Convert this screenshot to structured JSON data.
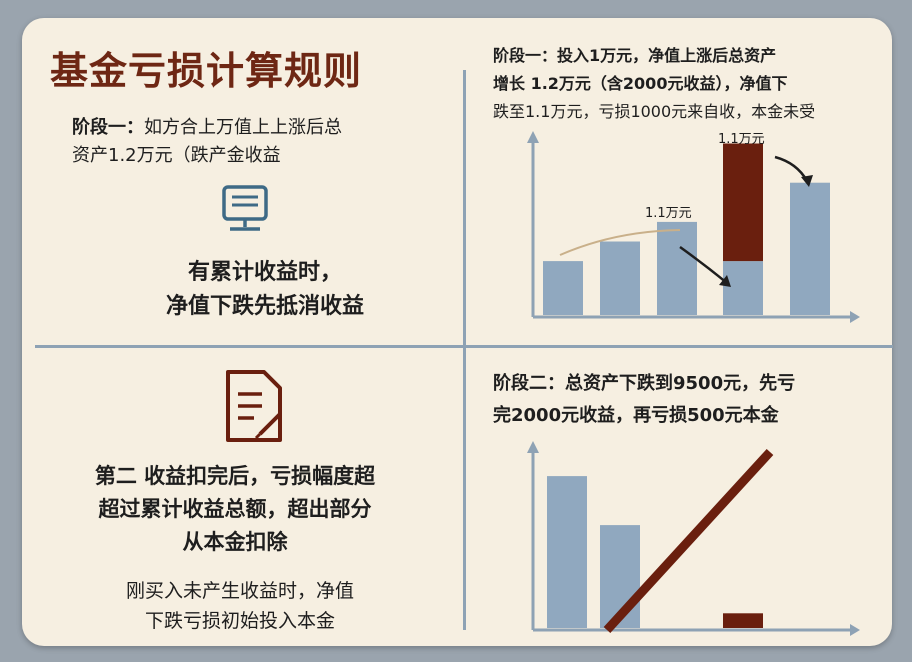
{
  "title": "基金亏损计算规则",
  "left_top": {
    "stage_label": "阶段一：",
    "stage_text_1": "如方合上万值上上涨后总",
    "stage_text_2": "资产1.2万元（跌产金收益",
    "rule_1": "有累计收益时，",
    "rule_2": "净值下跌先抵消收益"
  },
  "left_bottom": {
    "rule_1": "第二 收益扣完后，亏损幅度超",
    "rule_2": "超过累计收益总额，超出部分",
    "rule_3": "从本金扣除",
    "note_1": "刚买入未产生收益时，净值",
    "note_2": "下跌亏损初始投入本金"
  },
  "right_top": {
    "line_1": "阶段一：投入1万元，净值上涨后总资产",
    "line_2": "增长 1.2万元（含2000元收益），净值下",
    "line_3": "跌至1.1万元，亏损1000元来自收，本金未受"
  },
  "right_bottom": {
    "line_1": "阶段二：总资产下跌到9500元，先亏",
    "line_2": "完2000元收益，再亏损500元本金"
  },
  "colors": {
    "title": "#6e2714",
    "bar_blue": "#90a8bf",
    "bar_red": "#6a1f0e",
    "axis": "#8ea2b4",
    "background": "#f6efe1"
  },
  "chart_data": [
    {
      "type": "bar",
      "title": "",
      "annotations": [
        "1.1万元",
        "1.1万元"
      ],
      "bars": [
        {
          "value": 0.55,
          "color": "blue"
        },
        {
          "value": 0.75,
          "color": "blue"
        },
        {
          "value": 0.95,
          "color": "blue"
        },
        {
          "value": 0.55,
          "color": "blue",
          "stack_top": 1.75,
          "stack_color": "red"
        },
        {
          "value": 1.35,
          "color": "blue"
        }
      ]
    },
    {
      "type": "bar",
      "title": "",
      "bars": [
        {
          "value": 1.55,
          "color": "blue"
        },
        {
          "value": 1.05,
          "color": "blue"
        },
        {
          "value": 0.15,
          "color": "red"
        }
      ],
      "diagonal_line": true
    }
  ]
}
